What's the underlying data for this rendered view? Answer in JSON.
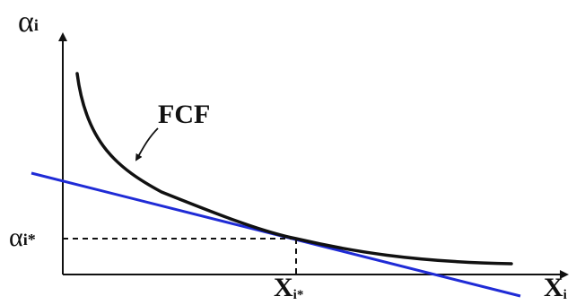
{
  "labels": {
    "y_axis": {
      "main": "α",
      "sub": "i"
    },
    "curve": "FCF",
    "alpha_star": {
      "main": "α",
      "sub": "i*"
    },
    "x_star": {
      "main": "X",
      "sub": "i*"
    },
    "x_axis": {
      "main": "X",
      "sub": "i"
    }
  },
  "colors": {
    "axes": "#111111",
    "curve": "#111111",
    "tangent": "#1f2bd6",
    "guides": "#111111"
  }
}
